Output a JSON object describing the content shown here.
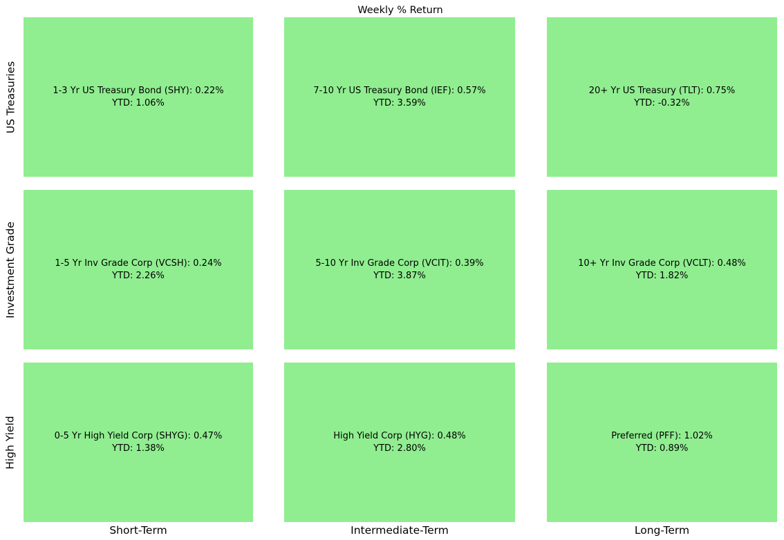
{
  "figure": {
    "title": "Weekly % Return",
    "background_color": "#ffffff",
    "cell_color": "#90ee90",
    "text_color": "#000000"
  },
  "chart_data": {
    "type": "heatmap",
    "title": "Weekly % Return",
    "columns": [
      "Short-Term",
      "Intermediate-Term",
      "Long-Term"
    ],
    "rows": [
      "US Treasuries",
      "Investment Grade",
      "High Yield"
    ],
    "legend_position": "none",
    "grid": false,
    "cells": [
      {
        "row": "US Treasuries",
        "column": "Short-Term",
        "fund": "1-3 Yr US Treasury Bond",
        "ticker": "SHY",
        "weekly_return_pct": 0.22,
        "ytd_return_pct": 1.06,
        "line1": "1-3 Yr US Treasury Bond (SHY): 0.22%",
        "line2": "YTD: 1.06%",
        "color": "#90ee90"
      },
      {
        "row": "US Treasuries",
        "column": "Intermediate-Term",
        "fund": "7-10 Yr US Treasury Bond",
        "ticker": "IEF",
        "weekly_return_pct": 0.57,
        "ytd_return_pct": 3.59,
        "line1": "7-10 Yr US Treasury Bond (IEF): 0.57%",
        "line2": "YTD: 3.59%",
        "color": "#90ee90"
      },
      {
        "row": "US Treasuries",
        "column": "Long-Term",
        "fund": "20+ Yr US Treasury",
        "ticker": "TLT",
        "weekly_return_pct": 0.75,
        "ytd_return_pct": -0.32,
        "line1": "20+ Yr US Treasury (TLT): 0.75%",
        "line2": "YTD: -0.32%",
        "color": "#90ee90"
      },
      {
        "row": "Investment Grade",
        "column": "Short-Term",
        "fund": "1-5 Yr Inv Grade Corp",
        "ticker": "VCSH",
        "weekly_return_pct": 0.24,
        "ytd_return_pct": 2.26,
        "line1": "1-5 Yr Inv Grade Corp (VCSH): 0.24%",
        "line2": "YTD: 2.26%",
        "color": "#90ee90"
      },
      {
        "row": "Investment Grade",
        "column": "Intermediate-Term",
        "fund": "5-10 Yr Inv Grade Corp",
        "ticker": "VCIT",
        "weekly_return_pct": 0.39,
        "ytd_return_pct": 3.87,
        "line1": "5-10 Yr Inv Grade Corp (VCIT): 0.39%",
        "line2": "YTD: 3.87%",
        "color": "#90ee90"
      },
      {
        "row": "Investment Grade",
        "column": "Long-Term",
        "fund": "10+ Yr Inv Grade Corp",
        "ticker": "VCLT",
        "weekly_return_pct": 0.48,
        "ytd_return_pct": 1.82,
        "line1": "10+ Yr Inv Grade Corp (VCLT): 0.48%",
        "line2": "YTD: 1.82%",
        "color": "#90ee90"
      },
      {
        "row": "High Yield",
        "column": "Short-Term",
        "fund": "0-5 Yr High Yield Corp",
        "ticker": "SHYG",
        "weekly_return_pct": 0.47,
        "ytd_return_pct": 1.38,
        "line1": "0-5 Yr High Yield Corp (SHYG): 0.47%",
        "line2": "YTD: 1.38%",
        "color": "#90ee90"
      },
      {
        "row": "High Yield",
        "column": "Intermediate-Term",
        "fund": "High Yield Corp",
        "ticker": "HYG",
        "weekly_return_pct": 0.48,
        "ytd_return_pct": 2.8,
        "line1": "High Yield Corp (HYG): 0.48%",
        "line2": "YTD: 2.80%",
        "color": "#90ee90"
      },
      {
        "row": "High Yield",
        "column": "Long-Term",
        "fund": "Preferred",
        "ticker": "PFF",
        "weekly_return_pct": 1.02,
        "ytd_return_pct": 0.89,
        "line1": "Preferred (PFF): 1.02%",
        "line2": "YTD: 0.89%",
        "color": "#90ee90"
      }
    ]
  }
}
